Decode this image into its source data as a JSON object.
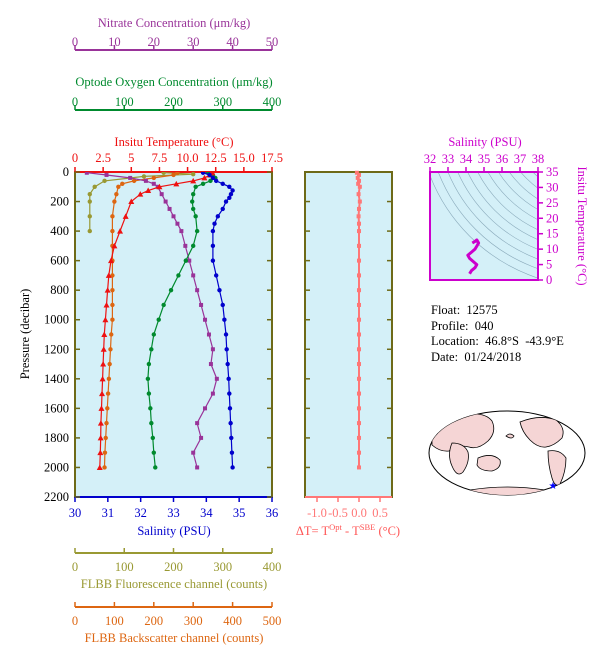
{
  "colors": {
    "nitrate": "#993399",
    "oxygen": "#008a2e",
    "temperature": "#ee1111",
    "salinity": "#0000cc",
    "fluorescence": "#999933",
    "backscatter": "#dd6611",
    "delta": "#ff7777",
    "inset_salinity_axis": "#cc00cc",
    "plot_bg": "#d4f0f8",
    "frame": "#6e6a18",
    "map_land": "#f5d5d5",
    "map_ocean": "#ffffff",
    "float_marker": "#0000ff"
  },
  "axes": {
    "nitrate": {
      "title": "Nitrate Concentration (μm/kg)",
      "ticks": [
        "0",
        "10",
        "20",
        "30",
        "40",
        "50"
      ],
      "range": [
        0,
        50
      ]
    },
    "oxygen": {
      "title": "Optode Oxygen Concentration (μm/kg)",
      "ticks": [
        "0",
        "100",
        "200",
        "300",
        "400"
      ],
      "range": [
        0,
        400
      ]
    },
    "temperature": {
      "title": "Insitu Temperature (°C)",
      "ticks": [
        "0",
        "2.5",
        "5",
        "7.5",
        "10.0",
        "12.5",
        "15.0",
        "17.5"
      ],
      "range": [
        0,
        17.5
      ]
    },
    "salinity": {
      "title": "Salinity (PSU)",
      "ticks": [
        "30",
        "31",
        "32",
        "33",
        "34",
        "35",
        "36"
      ],
      "range": [
        30,
        36
      ]
    },
    "pressure": {
      "title": "Pressure (decibar)",
      "ticks": [
        "0",
        "200",
        "400",
        "600",
        "800",
        "1000",
        "1200",
        "1400",
        "1600",
        "1800",
        "2000",
        "2200"
      ],
      "range": [
        0,
        2200
      ]
    },
    "fluorescence": {
      "title": "FLBB Fluorescence channel (counts)",
      "ticks": [
        "0",
        "100",
        "200",
        "300",
        "400"
      ],
      "range": [
        0,
        400
      ]
    },
    "backscatter": {
      "title": "FLBB Backscatter channel (counts)",
      "ticks": [
        "0",
        "100",
        "200",
        "300",
        "400",
        "500"
      ],
      "range": [
        0,
        500
      ]
    },
    "delta": {
      "title_prefix": "ΔT= T",
      "sup1": "Opt",
      "mid": " - T",
      "sup2": "SBE",
      "suffix": " (°C)",
      "ticks": [
        "-1.0",
        "-0.5",
        "0.0",
        "0.5"
      ],
      "range": [
        -1,
        0.5
      ]
    },
    "inset_salinity": {
      "title": "Salinity (PSU)",
      "ticks": [
        "32",
        "33",
        "34",
        "35",
        "36",
        "37",
        "38"
      ],
      "range": [
        32,
        38
      ]
    },
    "inset_temperature": {
      "title": "Insitu Temperature (°C)",
      "ticks": [
        "0",
        "5",
        "10",
        "15",
        "20",
        "25",
        "30",
        "35"
      ],
      "range": [
        0,
        35
      ]
    }
  },
  "info": {
    "float": "Float:  12575",
    "profile": "Profile:  040",
    "location": "Location:  46.8°S  -43.9°E",
    "date": "Date:  01/24/2018"
  },
  "chart_data": {
    "type": "line",
    "y_axis": "pressure",
    "series": [
      {
        "name": "Salinity (PSU)",
        "axis": "salinity",
        "values": [
          [
            33.9,
            5
          ],
          [
            34.1,
            20
          ],
          [
            34.2,
            40
          ],
          [
            34.3,
            60
          ],
          [
            34.5,
            80
          ],
          [
            34.7,
            100
          ],
          [
            34.8,
            125
          ],
          [
            34.75,
            150
          ],
          [
            34.7,
            175
          ],
          [
            34.6,
            200
          ],
          [
            34.5,
            250
          ],
          [
            34.35,
            300
          ],
          [
            34.25,
            350
          ],
          [
            34.2,
            400
          ],
          [
            34.2,
            500
          ],
          [
            34.2,
            600
          ],
          [
            34.3,
            700
          ],
          [
            34.4,
            800
          ],
          [
            34.5,
            900
          ],
          [
            34.55,
            1000
          ],
          [
            34.6,
            1100
          ],
          [
            34.62,
            1200
          ],
          [
            34.65,
            1300
          ],
          [
            34.68,
            1400
          ],
          [
            34.7,
            1500
          ],
          [
            34.72,
            1600
          ],
          [
            34.74,
            1700
          ],
          [
            34.76,
            1800
          ],
          [
            34.78,
            1900
          ],
          [
            34.8,
            2000
          ]
        ]
      },
      {
        "name": "Insitu Temperature (°C)",
        "axis": "temperature",
        "values": [
          [
            12.2,
            5
          ],
          [
            12.0,
            20
          ],
          [
            11.5,
            40
          ],
          [
            10.5,
            60
          ],
          [
            9.0,
            80
          ],
          [
            7.5,
            100
          ],
          [
            6.5,
            125
          ],
          [
            5.8,
            150
          ],
          [
            5.0,
            200
          ],
          [
            4.5,
            300
          ],
          [
            4.0,
            400
          ],
          [
            3.5,
            500
          ],
          [
            3.2,
            600
          ],
          [
            3.0,
            700
          ],
          [
            2.9,
            800
          ],
          [
            2.8,
            900
          ],
          [
            2.7,
            1000
          ],
          [
            2.6,
            1100
          ],
          [
            2.55,
            1200
          ],
          [
            2.5,
            1300
          ],
          [
            2.45,
            1400
          ],
          [
            2.4,
            1500
          ],
          [
            2.35,
            1600
          ],
          [
            2.3,
            1700
          ],
          [
            2.28,
            1800
          ],
          [
            2.25,
            1900
          ],
          [
            2.2,
            2000
          ]
        ]
      },
      {
        "name": "Optode Oxygen Concentration (μm/kg)",
        "axis": "oxygen",
        "values": [
          [
            270,
            5
          ],
          [
            280,
            20
          ],
          [
            285,
            40
          ],
          [
            275,
            60
          ],
          [
            260,
            80
          ],
          [
            245,
            100
          ],
          [
            240,
            150
          ],
          [
            238,
            200
          ],
          [
            240,
            250
          ],
          [
            245,
            300
          ],
          [
            248,
            400
          ],
          [
            240,
            500
          ],
          [
            225,
            600
          ],
          [
            210,
            700
          ],
          [
            195,
            800
          ],
          [
            180,
            900
          ],
          [
            170,
            1000
          ],
          [
            160,
            1100
          ],
          [
            155,
            1200
          ],
          [
            150,
            1300
          ],
          [
            148,
            1400
          ],
          [
            150,
            1500
          ],
          [
            153,
            1600
          ],
          [
            155,
            1700
          ],
          [
            158,
            1800
          ],
          [
            160,
            1900
          ],
          [
            163,
            2000
          ]
        ]
      },
      {
        "name": "Nitrate Concentration (μm/kg)",
        "axis": "nitrate",
        "values": [
          [
            3,
            5
          ],
          [
            8,
            20
          ],
          [
            14,
            40
          ],
          [
            18,
            60
          ],
          [
            20,
            80
          ],
          [
            21,
            100
          ],
          [
            22,
            150
          ],
          [
            23,
            200
          ],
          [
            24,
            250
          ],
          [
            25,
            300
          ],
          [
            26,
            350
          ],
          [
            27,
            400
          ],
          [
            28,
            500
          ],
          [
            29,
            600
          ],
          [
            30,
            700
          ],
          [
            31,
            800
          ],
          [
            32,
            900
          ],
          [
            33,
            1000
          ],
          [
            34,
            1100
          ],
          [
            35,
            1200
          ],
          [
            34.5,
            1300
          ],
          [
            36,
            1400
          ],
          [
            35,
            1500
          ],
          [
            33,
            1600
          ],
          [
            31,
            1700
          ],
          [
            32,
            1800
          ],
          [
            30,
            1900
          ],
          [
            31,
            2000
          ]
        ]
      },
      {
        "name": "FLBB Fluorescence channel (counts)",
        "axis": "fluorescence",
        "values": [
          [
            180,
            5
          ],
          [
            240,
            15
          ],
          [
            140,
            30
          ],
          [
            60,
            60
          ],
          [
            40,
            100
          ],
          [
            30,
            150
          ],
          [
            30,
            200
          ],
          [
            30,
            300
          ],
          [
            30,
            400
          ]
        ]
      },
      {
        "name": "FLBB Backscatter channel (counts)",
        "axis": "backscatter",
        "values": [
          [
            260,
            5
          ],
          [
            250,
            20
          ],
          [
            200,
            40
          ],
          [
            150,
            60
          ],
          [
            120,
            80
          ],
          [
            110,
            100
          ],
          [
            105,
            150
          ],
          [
            100,
            200
          ],
          [
            95,
            300
          ],
          [
            95,
            400
          ],
          [
            95,
            500
          ],
          [
            95,
            600
          ],
          [
            95,
            700
          ],
          [
            95,
            800
          ],
          [
            95,
            900
          ],
          [
            95,
            1000
          ],
          [
            92,
            1100
          ],
          [
            90,
            1200
          ],
          [
            88,
            1300
          ],
          [
            86,
            1400
          ],
          [
            84,
            1500
          ],
          [
            82,
            1600
          ],
          [
            80,
            1700
          ],
          [
            78,
            1800
          ],
          [
            76,
            1900
          ],
          [
            75,
            2000
          ]
        ]
      },
      {
        "name": "ΔT",
        "axis": "delta",
        "values": [
          [
            -0.05,
            5
          ],
          [
            0.0,
            20
          ],
          [
            -0.03,
            40
          ],
          [
            0.0,
            60
          ],
          [
            -0.02,
            80
          ],
          [
            0.02,
            100
          ],
          [
            -0.01,
            150
          ],
          [
            0.02,
            200
          ],
          [
            0.0,
            250
          ],
          [
            -0.01,
            300
          ],
          [
            0.0,
            350
          ],
          [
            0.0,
            400
          ],
          [
            0.0,
            500
          ],
          [
            0.0,
            600
          ],
          [
            0.0,
            700
          ],
          [
            0.0,
            800
          ],
          [
            0.0,
            900
          ],
          [
            0.0,
            1000
          ],
          [
            0.0,
            1100
          ],
          [
            0.0,
            1200
          ],
          [
            0.0,
            1300
          ],
          [
            0.0,
            1400
          ],
          [
            0.0,
            1500
          ],
          [
            0.0,
            1600
          ],
          [
            0.0,
            1700
          ],
          [
            0.0,
            1800
          ],
          [
            0.0,
            1900
          ],
          [
            0.0,
            2000
          ]
        ]
      }
    ],
    "ts_inset": {
      "salinity_range": [
        32,
        38
      ],
      "temperature_range": [
        0,
        35
      ],
      "points": [
        [
          34.2,
          2
        ],
        [
          34.3,
          3
        ],
        [
          34.5,
          4
        ],
        [
          34.6,
          5
        ],
        [
          34.4,
          6
        ],
        [
          34.2,
          7
        ],
        [
          34.1,
          8
        ],
        [
          34.3,
          9
        ],
        [
          34.5,
          10
        ],
        [
          34.6,
          11
        ],
        [
          34.7,
          12
        ],
        [
          34.6,
          13
        ],
        [
          34.5,
          12.5
        ],
        [
          34.35,
          12
        ]
      ]
    },
    "map": {
      "marker_label": "float position",
      "lat": -46.8,
      "lon": -43.9
    }
  }
}
